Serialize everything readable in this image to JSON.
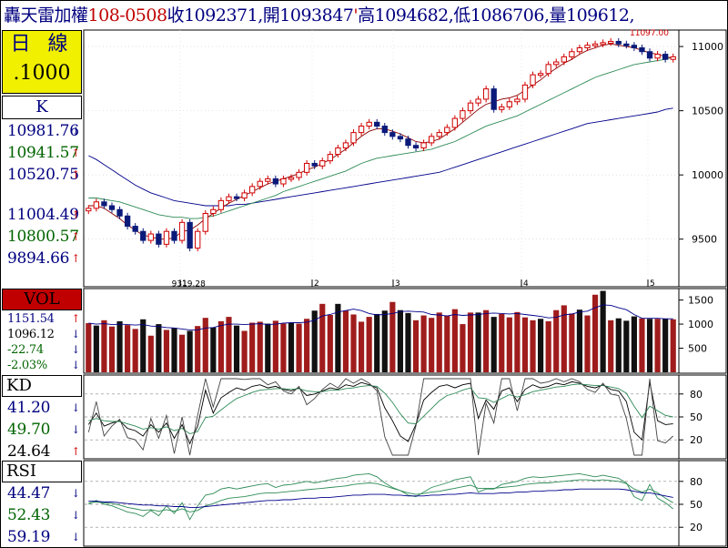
{
  "header": {
    "stock_name": "轟天雷",
    "index_name": "加權",
    "date_code": "108-0508",
    "close_label": "收",
    "close_value": "1092371",
    "open_label": ",開",
    "open_value": "1093847",
    "tick_mark": "'",
    "high_label": "高",
    "high_value": "1094682",
    "low_label": ",低",
    "low_value": "1086706",
    "vol_label": ",量",
    "vol_value": "109612",
    "trail": ","
  },
  "left_panel": {
    "period_label": "日 線",
    "scale_label": ".1000",
    "k_label": "K",
    "k_values": [
      {
        "text": "10981.76",
        "color": "#000080",
        "arrow": "↓",
        "arrow_color": "#000080"
      },
      {
        "text": "10941.57",
        "color": "#006400",
        "arrow": "↑",
        "arrow_color": "#d00000"
      },
      {
        "text": "10520.75",
        "color": "#000080",
        "arrow": "↑",
        "arrow_color": "#d00000"
      },
      {
        "text": "11004.49",
        "color": "#000080",
        "arrow": "↑",
        "arrow_color": "#d00000"
      },
      {
        "text": "10800.57",
        "color": "#006400",
        "arrow": "↑",
        "arrow_color": "#d00000"
      },
      {
        "text": "9894.66",
        "color": "#000080",
        "arrow": "↑",
        "arrow_color": "#d00000"
      }
    ],
    "vol_label": "VOL",
    "vol_values": [
      {
        "text": "1151.54",
        "color": "#000080",
        "arrow": "↑",
        "arrow_color": "#d00000"
      },
      {
        "text": "1096.12",
        "color": "#000000",
        "arrow": "↓",
        "arrow_color": "#000080"
      },
      {
        "text": "-22.74",
        "color": "#006400",
        "arrow": "↓",
        "arrow_color": "#000080"
      },
      {
        "text": "-2.03%",
        "color": "#006400",
        "arrow": "↓",
        "arrow_color": "#000080"
      }
    ],
    "kd_label": "KD",
    "kd_values": [
      {
        "text": "41.20",
        "color": "#000080",
        "arrow": "↓",
        "arrow_color": "#000080"
      },
      {
        "text": "49.70",
        "color": "#006400",
        "arrow": "↓",
        "arrow_color": "#000080"
      },
      {
        "text": "24.64",
        "color": "#000000",
        "arrow": "↑",
        "arrow_color": "#d00000"
      }
    ],
    "rsi_label": "RSI",
    "rsi_values": [
      {
        "text": "44.47",
        "color": "#000080",
        "arrow": "↓",
        "arrow_color": "#000080"
      },
      {
        "text": "52.43",
        "color": "#006400",
        "arrow": "↓",
        "arrow_color": "#000080"
      },
      {
        "text": "59.19",
        "color": "#000080",
        "arrow": "↓",
        "arrow_color": "#000080"
      }
    ]
  },
  "colors": {
    "up": "#d00000",
    "down": "#0a1a7a",
    "vol_up": "#a01c1c",
    "vol_down": "#111111",
    "ma_short": "#8b0000",
    "ma_mid": "#2e8b57",
    "ma_long": "#00008b",
    "grid": "#cccccc",
    "label_yellow": "#f0f000",
    "label_red": "#c00000"
  },
  "chart_data": [
    {
      "type": "candlestick",
      "title": "",
      "ylim": [
        9200,
        11100
      ],
      "yticks": [
        9500,
        10000,
        10500,
        11000
      ],
      "month_markers": [
        "1",
        "2",
        "3",
        "4",
        "5"
      ],
      "annotations": [
        {
          "text": "9319.28",
          "type": "low"
        },
        {
          "text": "11097.00",
          "type": "high"
        }
      ],
      "close": [
        9740,
        9790,
        9760,
        9730,
        9680,
        9600,
        9560,
        9490,
        9540,
        9460,
        9560,
        9490,
        9630,
        9430,
        9560,
        9700,
        9730,
        9800,
        9830,
        9820,
        9860,
        9910,
        9950,
        9970,
        9930,
        9970,
        9980,
        10020,
        10090,
        10070,
        10110,
        10160,
        10210,
        10250,
        10330,
        10380,
        10410,
        10380,
        10330,
        10300,
        10280,
        10230,
        10210,
        10250,
        10300,
        10330,
        10370,
        10440,
        10500,
        10560,
        10590,
        10670,
        10510,
        10530,
        10570,
        10590,
        10700,
        10780,
        10790,
        10860,
        10880,
        10920,
        10960,
        10990,
        11010,
        11020,
        11030,
        11040,
        11020,
        11010,
        10990,
        10960,
        10910,
        10940,
        10900,
        10920
      ],
      "ma_short": [
        9760,
        9760,
        9740,
        9700,
        9660,
        9610,
        9570,
        9530,
        9520,
        9500,
        9500,
        9510,
        9560,
        9570,
        9610,
        9660,
        9700,
        9740,
        9780,
        9810,
        9840,
        9870,
        9900,
        9930,
        9950,
        9970,
        9990,
        10010,
        10040,
        10060,
        10090,
        10120,
        10160,
        10200,
        10250,
        10300,
        10340,
        10360,
        10360,
        10340,
        10320,
        10290,
        10260,
        10250,
        10260,
        10280,
        10320,
        10360,
        10410,
        10460,
        10510,
        10550,
        10570,
        10590,
        10600,
        10620,
        10660,
        10700,
        10740,
        10790,
        10830,
        10870,
        10900,
        10940,
        10970,
        10990,
        11010,
        11020,
        11010,
        11000,
        10990,
        10970,
        10950,
        10940,
        10920,
        10910
      ],
      "ma_mid": [
        9820,
        9820,
        9810,
        9800,
        9790,
        9770,
        9750,
        9730,
        9710,
        9690,
        9680,
        9670,
        9670,
        9660,
        9660,
        9670,
        9680,
        9700,
        9720,
        9740,
        9760,
        9780,
        9800,
        9820,
        9840,
        9870,
        9890,
        9910,
        9930,
        9950,
        9970,
        9990,
        10010,
        10030,
        10060,
        10090,
        10110,
        10130,
        10140,
        10150,
        10160,
        10170,
        10180,
        10190,
        10200,
        10220,
        10240,
        10260,
        10290,
        10320,
        10350,
        10380,
        10400,
        10420,
        10440,
        10460,
        10490,
        10520,
        10550,
        10580,
        10610,
        10640,
        10670,
        10700,
        10730,
        10760,
        10780,
        10800,
        10820,
        10840,
        10860,
        10870,
        10880,
        10890,
        10900,
        10920
      ],
      "ma_long": [
        10150,
        10120,
        10080,
        10040,
        10000,
        9960,
        9920,
        9890,
        9860,
        9840,
        9820,
        9800,
        9790,
        9780,
        9770,
        9760,
        9760,
        9760,
        9760,
        9770,
        9770,
        9780,
        9790,
        9800,
        9810,
        9820,
        9830,
        9840,
        9850,
        9860,
        9870,
        9880,
        9890,
        9900,
        9910,
        9920,
        9930,
        9940,
        9950,
        9960,
        9970,
        9980,
        9990,
        10000,
        10010,
        10020,
        10040,
        10060,
        10080,
        10100,
        10120,
        10140,
        10160,
        10180,
        10200,
        10220,
        10240,
        10260,
        10280,
        10300,
        10320,
        10340,
        10360,
        10380,
        10400,
        10410,
        10420,
        10430,
        10440,
        10450,
        10460,
        10470,
        10480,
        10490,
        10510,
        10520
      ]
    },
    {
      "type": "bar",
      "title": "VOL",
      "ylim": [
        0,
        1700
      ],
      "yticks": [
        500,
        1000,
        1500
      ],
      "values": [
        1020,
        970,
        1080,
        950,
        1060,
        980,
        900,
        1100,
        760,
        1000,
        880,
        920,
        780,
        860,
        960,
        1130,
        930,
        1060,
        1150,
        970,
        860,
        1030,
        1050,
        1010,
        1070,
        1010,
        1020,
        1010,
        1110,
        1280,
        1420,
        1190,
        1420,
        1280,
        1200,
        1050,
        1150,
        1210,
        1280,
        1460,
        1290,
        1230,
        1080,
        1180,
        1130,
        1240,
        1180,
        1310,
        1000,
        1240,
        1240,
        1290,
        1150,
        1210,
        1140,
        1250,
        1140,
        1080,
        1110,
        1060,
        1290,
        1390,
        1220,
        1300,
        1180,
        1610,
        1690,
        1080,
        1120,
        1070,
        1160,
        1120,
        1110,
        1110,
        1110,
        1100
      ],
      "up": [
        1,
        0,
        1,
        1,
        0,
        1,
        1,
        0,
        1,
        0,
        1,
        0,
        1,
        0,
        1,
        1,
        0,
        1,
        1,
        0,
        1,
        1,
        1,
        0,
        1,
        1,
        0,
        1,
        1,
        0,
        1,
        1,
        0,
        1,
        1,
        1,
        1,
        0,
        0,
        1,
        0,
        0,
        1,
        1,
        1,
        1,
        1,
        1,
        1,
        1,
        0,
        1,
        0,
        1,
        1,
        1,
        1,
        1,
        0,
        1,
        1,
        1,
        1,
        0,
        1,
        1,
        0,
        1,
        0,
        0,
        0,
        1,
        0,
        1,
        0,
        1
      ],
      "ma5": [
        1020,
        1000,
        1010,
        990,
        1000,
        990,
        980,
        990,
        960,
        950,
        930,
        920,
        900,
        880,
        880,
        920,
        930,
        970,
        1000,
        1000,
        990,
        1000,
        1010,
        990,
        1000,
        1020,
        1030,
        1030,
        1040,
        1080,
        1170,
        1200,
        1250,
        1280,
        1310,
        1280,
        1220,
        1190,
        1200,
        1220,
        1260,
        1270,
        1260,
        1250,
        1200,
        1190,
        1170,
        1200,
        1180,
        1190,
        1200,
        1220,
        1230,
        1220,
        1210,
        1220,
        1200,
        1180,
        1160,
        1130,
        1140,
        1190,
        1210,
        1250,
        1270,
        1340,
        1400,
        1390,
        1340,
        1300,
        1200,
        1120,
        1120,
        1120,
        1110,
        1110
      ]
    },
    {
      "type": "line",
      "title": "KD",
      "ylim": [
        0,
        100
      ],
      "yticks": [
        20,
        50,
        80
      ],
      "series": [
        {
          "name": "K",
          "values": [
            40,
            55,
            38,
            42,
            45,
            35,
            32,
            25,
            40,
            30,
            42,
            22,
            40,
            15,
            38,
            85,
            55,
            75,
            82,
            88,
            85,
            90,
            92,
            88,
            90,
            86,
            84,
            88,
            78,
            80,
            84,
            88,
            86,
            92,
            90,
            95,
            92,
            88,
            62,
            45,
            25,
            18,
            40,
            72,
            82,
            90,
            92,
            88,
            92,
            94,
            48,
            72,
            60,
            84,
            88,
            70,
            86,
            92,
            88,
            90,
            94,
            92,
            96,
            94,
            90,
            88,
            92,
            86,
            84,
            70,
            30,
            20,
            95,
            45,
            40,
            41
          ]
        },
        {
          "name": "D",
          "values": [
            45,
            48,
            45,
            44,
            44,
            41,
            38,
            34,
            36,
            34,
            37,
            32,
            35,
            28,
            31,
            49,
            51,
            59,
            67,
            74,
            78,
            82,
            85,
            86,
            87,
            87,
            86,
            87,
            84,
            83,
            83,
            85,
            85,
            87,
            88,
            90,
            91,
            90,
            81,
            69,
            54,
            42,
            41,
            51,
            61,
            71,
            78,
            81,
            85,
            88,
            75,
            74,
            69,
            74,
            79,
            76,
            79,
            83,
            85,
            87,
            89,
            90,
            92,
            93,
            92,
            91,
            91,
            89,
            87,
            81,
            64,
            49,
            64,
            58,
            52,
            50
          ]
        },
        {
          "name": "J",
          "values": [
            30,
            70,
            25,
            38,
            47,
            23,
            20,
            7,
            48,
            22,
            52,
            2,
            50,
            0,
            52,
            100,
            63,
            100,
            100,
            100,
            99,
            100,
            100,
            92,
            96,
            84,
            80,
            90,
            66,
            74,
            86,
            94,
            88,
            100,
            94,
            100,
            94,
            84,
            24,
            0,
            0,
            0,
            38,
            100,
            100,
            100,
            100,
            100,
            100,
            100,
            0,
            68,
            42,
            100,
            100,
            58,
            100,
            100,
            94,
            96,
            100,
            96,
            100,
            96,
            86,
            82,
            94,
            80,
            78,
            48,
            0,
            0,
            100,
            19,
            16,
            25
          ]
        }
      ]
    },
    {
      "type": "line",
      "title": "RSI",
      "ylim": [
        0,
        100
      ],
      "yticks": [
        20,
        50,
        80
      ],
      "series": [
        {
          "name": "RSI short",
          "values": [
            50,
            55,
            50,
            48,
            44,
            40,
            38,
            34,
            42,
            35,
            48,
            38,
            52,
            30,
            48,
            62,
            64,
            70,
            72,
            70,
            72,
            74,
            76,
            77,
            72,
            75,
            76,
            78,
            80,
            78,
            80,
            82,
            84,
            85,
            88,
            89,
            90,
            86,
            78,
            72,
            68,
            62,
            60,
            66,
            72,
            75,
            78,
            82,
            84,
            86,
            66,
            70,
            70,
            76,
            78,
            80,
            84,
            86,
            85,
            86,
            87,
            88,
            89,
            90,
            88,
            86,
            88,
            86,
            84,
            78,
            60,
            55,
            76,
            58,
            52,
            44
          ]
        },
        {
          "name": "RSI mid",
          "values": [
            52,
            53,
            52,
            51,
            49,
            46,
            44,
            42,
            43,
            41,
            43,
            41,
            44,
            40,
            42,
            48,
            51,
            55,
            58,
            59,
            60,
            62,
            64,
            65,
            65,
            66,
            67,
            68,
            69,
            70,
            71,
            72,
            73,
            74,
            76,
            77,
            78,
            77,
            74,
            71,
            68,
            65,
            63,
            64,
            66,
            67,
            69,
            71,
            73,
            75,
            71,
            71,
            71,
            72,
            73,
            74,
            76,
            77,
            78,
            78,
            79,
            80,
            81,
            82,
            82,
            81,
            82,
            81,
            80,
            77,
            70,
            66,
            70,
            65,
            58,
            52
          ]
        },
        {
          "name": "RSI long",
          "values": [
            54,
            54,
            53,
            53,
            52,
            51,
            50,
            49,
            49,
            48,
            48,
            47,
            47,
            46,
            46,
            47,
            48,
            49,
            50,
            51,
            52,
            53,
            54,
            55,
            55,
            56,
            56,
            57,
            58,
            58,
            59,
            59,
            60,
            61,
            62,
            62,
            63,
            63,
            63,
            62,
            62,
            61,
            61,
            61,
            62,
            62,
            63,
            63,
            64,
            65,
            64,
            64,
            64,
            65,
            65,
            66,
            66,
            67,
            67,
            68,
            68,
            69,
            69,
            70,
            70,
            70,
            70,
            70,
            70,
            69,
            67,
            65,
            65,
            63,
            61,
            59
          ]
        }
      ]
    }
  ]
}
